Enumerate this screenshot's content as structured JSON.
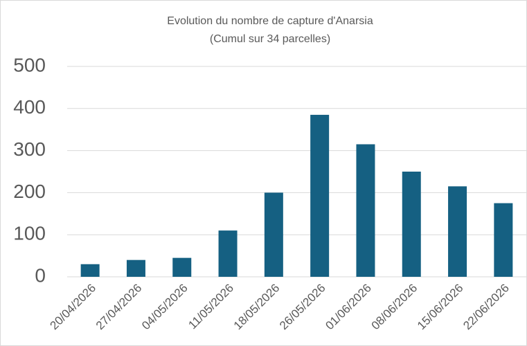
{
  "chart_data": {
    "type": "bar",
    "title": "Evolution du nombre de capture d'Anarsia",
    "subtitle": "(Cumul sur 34 parcelles)",
    "categories": [
      "20/04/2026",
      "27/04/2026",
      "04/05/2026",
      "11/05/2026",
      "18/05/2026",
      "26/05/2026",
      "01/06/2026",
      "08/06/2026",
      "15/06/2026",
      "22/06/2026"
    ],
    "values": [
      30,
      40,
      45,
      110,
      200,
      385,
      315,
      250,
      215,
      175
    ],
    "color": "#156082",
    "ylim": [
      0,
      500
    ],
    "yticks": [
      0,
      100,
      200,
      300,
      400,
      500
    ],
    "grid": true
  }
}
